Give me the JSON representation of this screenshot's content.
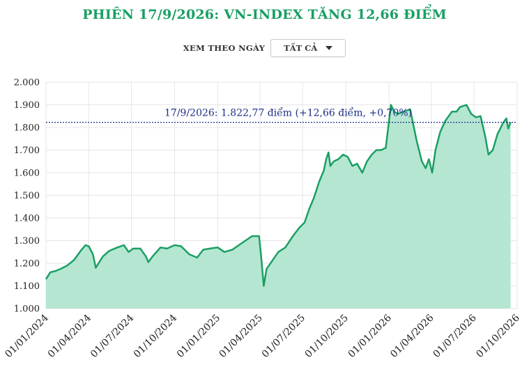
{
  "header": {
    "title": "PHIÊN 17/9/2026: VN-INDEX TĂNG 12,66 ĐIỂM"
  },
  "filter": {
    "label": "XEM THEO NGÀY",
    "selected": "TẤT CẢ"
  },
  "colors": {
    "title": "#1a9f63",
    "line": "#1a9f63",
    "area": "#b5e6d1",
    "reference": "#1c2d86",
    "grid": "#e6e6e6"
  },
  "chart_data": {
    "type": "area",
    "title": "PHIÊN 17/9/2026: VN-INDEX TĂNG 12,66 ĐIỂM",
    "xlabel": "",
    "ylabel": "",
    "x_range": [
      "2024-01-01",
      "2026-10-01"
    ],
    "ylim": [
      1000,
      2000
    ],
    "y_ticks": [
      "1.000",
      "1.100",
      "1.200",
      "1.300",
      "1.400",
      "1.500",
      "1.600",
      "1.700",
      "1.800",
      "1.900",
      "2.000"
    ],
    "x_ticks": [
      "01/01/2024",
      "01/04/2024",
      "01/07/2024",
      "01/10/2024",
      "01/01/2025",
      "01/04/2025",
      "01/07/2025",
      "01/10/2025",
      "01/01/2026",
      "01/04/2026",
      "01/07/2026",
      "01/10/2026"
    ],
    "grid": true,
    "reference_line": {
      "value": 1822.77,
      "label": "17/9/2026: 1.822,77 điểm (+12,66 điểm, +0,70%)"
    },
    "series": [
      {
        "x": [
          "2024-01-01",
          "2024-01-10",
          "2024-01-20",
          "2024-02-01",
          "2024-02-15",
          "2024-03-01",
          "2024-03-15",
          "2024-03-25",
          "2024-04-01",
          "2024-04-10",
          "2024-04-16",
          "2024-04-22",
          "2024-05-01",
          "2024-05-15",
          "2024-06-01",
          "2024-06-15",
          "2024-06-25",
          "2024-07-05",
          "2024-07-20",
          "2024-08-01",
          "2024-08-06",
          "2024-08-15",
          "2024-09-01",
          "2024-09-15",
          "2024-10-01",
          "2024-10-15",
          "2024-11-01",
          "2024-11-18",
          "2024-12-01",
          "2024-12-15",
          "2025-01-01",
          "2025-01-15",
          "2025-02-01",
          "2025-02-15",
          "2025-03-01",
          "2025-03-15",
          "2025-03-30",
          "2025-04-03",
          "2025-04-09",
          "2025-04-15",
          "2025-04-25",
          "2025-05-10",
          "2025-05-25",
          "2025-06-10",
          "2025-06-25",
          "2025-07-05",
          "2025-07-15",
          "2025-07-25",
          "2025-08-05",
          "2025-08-15",
          "2025-08-20",
          "2025-08-25",
          "2025-08-29",
          "2025-09-05",
          "2025-09-15",
          "2025-09-25",
          "2025-10-05",
          "2025-10-15",
          "2025-10-25",
          "2025-11-05",
          "2025-11-15",
          "2025-11-25",
          "2025-12-05",
          "2025-12-15",
          "2025-12-25",
          "2026-01-05",
          "2026-01-12",
          "2026-01-20",
          "2026-02-01",
          "2026-02-15",
          "2026-03-01",
          "2026-03-12",
          "2026-03-20",
          "2026-03-27",
          "2026-04-03",
          "2026-04-10",
          "2026-04-20",
          "2026-05-01",
          "2026-05-15",
          "2026-05-25",
          "2026-06-01",
          "2026-06-15",
          "2026-06-25",
          "2026-07-05",
          "2026-07-15",
          "2026-07-25",
          "2026-08-01",
          "2026-08-10",
          "2026-08-20",
          "2026-09-01",
          "2026-09-08",
          "2026-09-12",
          "2026-09-17"
        ],
        "values": [
          1130,
          1160,
          1165,
          1175,
          1190,
          1215,
          1255,
          1280,
          1275,
          1240,
          1180,
          1200,
          1230,
          1255,
          1270,
          1280,
          1250,
          1265,
          1265,
          1230,
          1205,
          1230,
          1270,
          1265,
          1280,
          1275,
          1240,
          1225,
          1260,
          1265,
          1270,
          1250,
          1260,
          1280,
          1300,
          1320,
          1320,
          1240,
          1100,
          1175,
          1205,
          1250,
          1270,
          1320,
          1360,
          1380,
          1440,
          1490,
          1560,
          1610,
          1660,
          1690,
          1630,
          1650,
          1660,
          1680,
          1670,
          1630,
          1640,
          1600,
          1650,
          1680,
          1700,
          1700,
          1710,
          1900,
          1870,
          1860,
          1870,
          1880,
          1740,
          1650,
          1620,
          1660,
          1600,
          1700,
          1780,
          1830,
          1870,
          1870,
          1890,
          1900,
          1860,
          1845,
          1850,
          1760,
          1680,
          1700,
          1770,
          1820,
          1840,
          1795,
          1822.77
        ]
      }
    ]
  }
}
